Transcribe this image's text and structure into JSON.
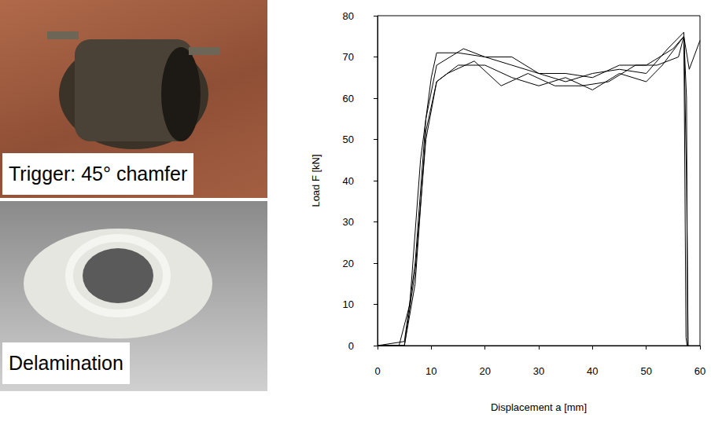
{
  "photos": [
    {
      "label": "Trigger: 45° chamfer"
    },
    {
      "label": "Delamination"
    }
  ],
  "chart_data": {
    "type": "line",
    "x_label": "Displacement a [mm]",
    "y_label": "Load F [kN]",
    "xlim": [
      0,
      60
    ],
    "xticks": [
      0,
      10,
      20,
      30,
      40,
      50,
      60
    ],
    "ylim": [
      0,
      80
    ],
    "yticks": [
      0,
      10,
      20,
      30,
      40,
      50,
      60,
      70,
      80
    ],
    "grid": false,
    "color": "#000000",
    "series": [
      {
        "x": [
          0,
          4,
          6,
          8,
          10,
          11,
          15,
          20,
          25,
          30,
          35,
          40,
          45,
          50,
          55,
          57,
          57.5,
          57.7
        ],
        "values": [
          0,
          0,
          10,
          45,
          65,
          71,
          71,
          70,
          68,
          66,
          66,
          65,
          68,
          68,
          72,
          75,
          60,
          0
        ]
      },
      {
        "x": [
          0,
          5,
          7,
          9,
          11,
          16,
          20,
          25,
          30,
          35,
          40,
          45,
          50,
          54,
          57,
          57.5,
          57.8
        ],
        "values": [
          0,
          1,
          20,
          55,
          68,
          72,
          70,
          70,
          66,
          64,
          66,
          67,
          66,
          72,
          76,
          40,
          0
        ]
      },
      {
        "x": [
          0,
          5,
          7,
          9,
          11,
          13,
          18,
          23,
          28,
          33,
          38,
          43,
          48,
          52,
          56,
          57,
          58,
          60
        ],
        "values": [
          0,
          0,
          18,
          50,
          64,
          66,
          69,
          63,
          66,
          63,
          63,
          64,
          68,
          68,
          70,
          75,
          67,
          74
        ]
      },
      {
        "x": [
          0,
          5,
          7,
          9,
          11,
          15,
          20,
          25,
          30,
          35,
          40,
          45,
          50,
          53,
          57,
          57.4,
          57.6
        ],
        "values": [
          0,
          0,
          15,
          52,
          64,
          68,
          68,
          65,
          63,
          65,
          62,
          66,
          64,
          68,
          75,
          2,
          0
        ]
      }
    ]
  }
}
